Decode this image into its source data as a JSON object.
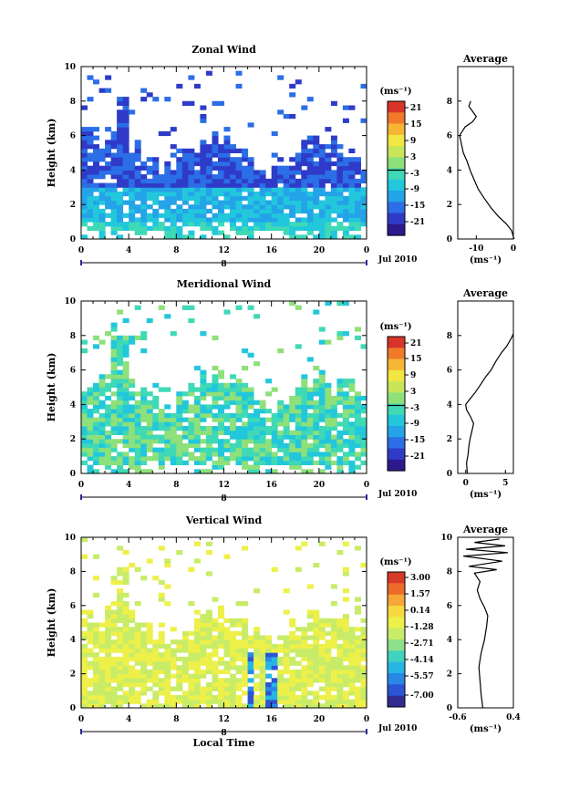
{
  "chart_data": [
    {
      "type": "heatmap",
      "title": "Zonal Wind",
      "ylabel": "Height (km)",
      "ylim": [
        0,
        10
      ],
      "y_ticks": [
        "0",
        "2",
        "4",
        "6",
        "8",
        "10"
      ],
      "x_ticks": [
        "0",
        "4",
        "8",
        "12",
        "16",
        "20",
        "0"
      ],
      "date_marker": "8",
      "date_label": "Jul 2010",
      "colorbar": {
        "unit": "(ms⁻¹)",
        "ticks": [
          "21",
          "15",
          "9",
          "3",
          "-3",
          "-9",
          "-15",
          "-21"
        ]
      },
      "average": {
        "title": "Average",
        "xlabel": "(ms⁻¹)",
        "x_ticks": [
          "-10",
          "0"
        ],
        "y_ticks": [
          "0",
          "2",
          "4",
          "6",
          "8"
        ],
        "xlim": [
          -15,
          0
        ],
        "ylim": [
          0,
          10
        ],
        "profile": [
          [
            0.2,
            0
          ],
          [
            -0.5,
            0.5
          ],
          [
            -2,
            0.9
          ],
          [
            -4,
            1.3
          ],
          [
            -6,
            1.8
          ],
          [
            -8,
            2.4
          ],
          [
            -9.5,
            2.9
          ],
          [
            -10.5,
            3.4
          ],
          [
            -11.5,
            3.9
          ],
          [
            -12.5,
            4.5
          ],
          [
            -13.5,
            5.0
          ],
          [
            -14,
            5.5
          ],
          [
            -14.5,
            6.0
          ],
          [
            -13,
            6.5
          ],
          [
            -11,
            6.8
          ],
          [
            -10,
            7.1
          ],
          [
            -11,
            7.4
          ],
          [
            -12,
            7.7
          ],
          [
            -11.5,
            8.0
          ]
        ]
      }
    },
    {
      "type": "heatmap",
      "title": "Meridional Wind",
      "ylabel": "Height (km)",
      "ylim": [
        0,
        10
      ],
      "y_ticks": [
        "0",
        "2",
        "4",
        "6",
        "8",
        "10"
      ],
      "x_ticks": [
        "0",
        "4",
        "8",
        "12",
        "16",
        "20",
        "0"
      ],
      "date_marker": "8",
      "date_label": "Jul 2010",
      "colorbar": {
        "unit": "(ms⁻¹)",
        "ticks": [
          "21",
          "15",
          "9",
          "3",
          "-3",
          "-9",
          "-15",
          "-21"
        ]
      },
      "average": {
        "title": "Average",
        "xlabel": "(ms⁻¹)",
        "x_ticks": [
          "0",
          "5"
        ],
        "y_ticks": [
          "0",
          "2",
          "4",
          "6",
          "8"
        ],
        "xlim": [
          -1,
          6
        ],
        "ylim": [
          0,
          10
        ],
        "profile": [
          [
            0.2,
            0
          ],
          [
            0.1,
            0.6
          ],
          [
            0.3,
            1.1
          ],
          [
            0.4,
            1.6
          ],
          [
            0.6,
            2.1
          ],
          [
            0.8,
            2.5
          ],
          [
            1.0,
            2.9
          ],
          [
            0.6,
            3.3
          ],
          [
            0.1,
            3.7
          ],
          [
            0.0,
            4.0
          ],
          [
            0.5,
            4.3
          ],
          [
            1.2,
            4.7
          ],
          [
            1.8,
            5.1
          ],
          [
            2.5,
            5.6
          ],
          [
            3.2,
            6.0
          ],
          [
            3.8,
            6.5
          ],
          [
            4.5,
            7.0
          ],
          [
            5.2,
            7.4
          ],
          [
            5.8,
            7.9
          ],
          [
            6.0,
            8.1
          ]
        ]
      }
    },
    {
      "type": "heatmap",
      "title": "Vertical Wind",
      "xlabel": "Local Time",
      "ylabel": "Height (km)",
      "ylim": [
        0,
        10
      ],
      "y_ticks": [
        "0",
        "2",
        "4",
        "6",
        "8",
        "10"
      ],
      "x_ticks": [
        "0",
        "4",
        "8",
        "12",
        "16",
        "20",
        "0"
      ],
      "date_marker": "8",
      "date_label": "Jul 2010",
      "colorbar": {
        "unit": "(ms⁻¹)",
        "ticks": [
          "3.00",
          "1.57",
          "0.14",
          "-1.28",
          "-2.71",
          "-4.14",
          "-5.57",
          "-7.00"
        ]
      },
      "average": {
        "title": "Average",
        "xlabel": "(ms⁻¹)",
        "x_ticks": [
          "-0.6",
          "0.4"
        ],
        "y_ticks": [
          "0",
          "2",
          "4",
          "6",
          "8",
          "10"
        ],
        "xlim": [
          -0.6,
          0.4
        ],
        "ylim": [
          0,
          10
        ],
        "profile": [
          [
            -0.15,
            0
          ],
          [
            -0.18,
            0.8
          ],
          [
            -0.2,
            1.6
          ],
          [
            -0.22,
            2.4
          ],
          [
            -0.18,
            3.2
          ],
          [
            -0.12,
            4.0
          ],
          [
            -0.08,
            4.8
          ],
          [
            -0.06,
            5.4
          ],
          [
            -0.12,
            5.9
          ],
          [
            -0.2,
            6.4
          ],
          [
            -0.25,
            6.9
          ],
          [
            -0.2,
            7.4
          ],
          [
            -0.3,
            7.9
          ],
          [
            0.1,
            8.1
          ],
          [
            -0.4,
            8.3
          ],
          [
            0.2,
            8.6
          ],
          [
            -0.5,
            8.9
          ],
          [
            0.3,
            9.1
          ],
          [
            -0.45,
            9.3
          ],
          [
            0.25,
            9.5
          ],
          [
            -0.3,
            9.7
          ],
          [
            0.15,
            9.9
          ]
        ]
      }
    }
  ]
}
